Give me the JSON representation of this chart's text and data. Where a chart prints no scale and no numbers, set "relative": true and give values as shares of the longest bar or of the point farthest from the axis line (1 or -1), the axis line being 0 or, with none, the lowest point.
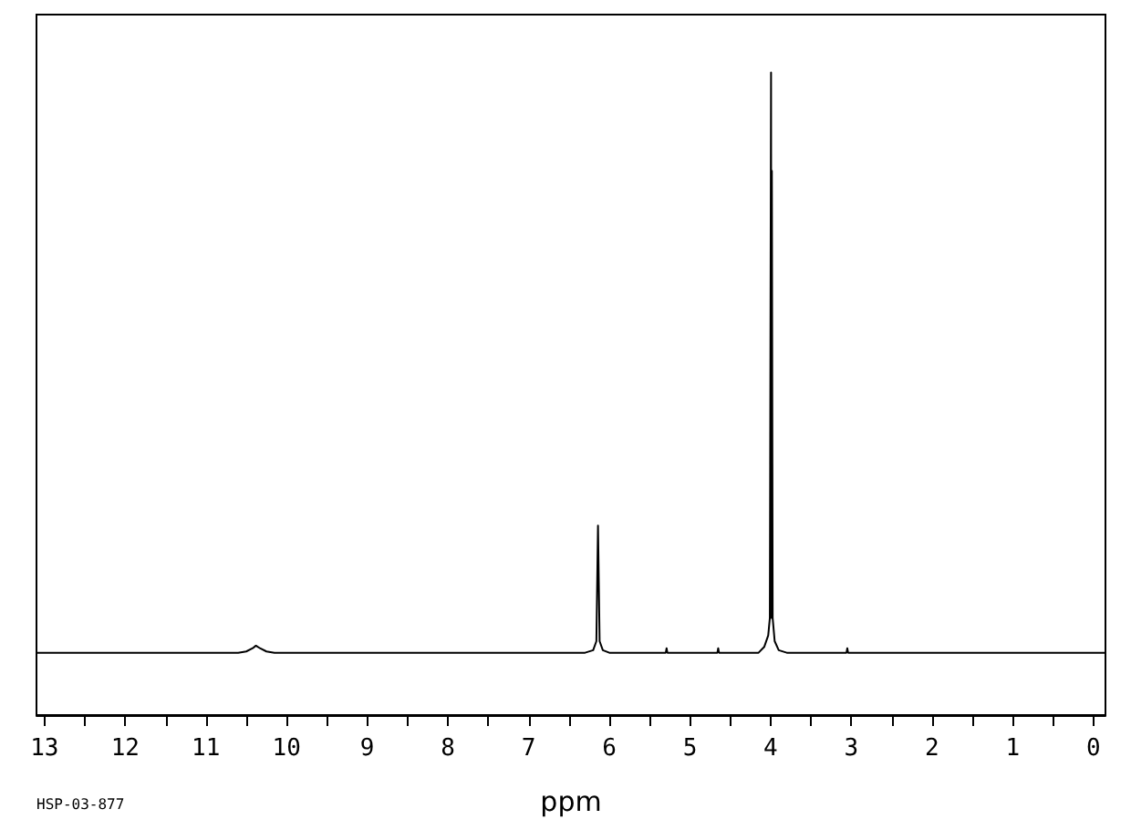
{
  "chart_data": {
    "type": "line",
    "relative": true,
    "xlabel": "ppm",
    "annotations": [
      "HSP-03-877"
    ],
    "xlim": [
      13.1,
      -0.15
    ],
    "xticks": [
      13,
      {
        "value": 12.5,
        "label": null
      },
      12,
      {
        "value": 11.5,
        "label": null
      },
      11,
      {
        "value": 10.5,
        "label": null
      },
      10,
      {
        "value": 9.5,
        "label": null
      },
      9,
      {
        "value": 8.5,
        "label": null
      },
      8,
      {
        "value": 7.5,
        "label": null
      },
      7,
      {
        "value": 6.5,
        "label": null
      },
      6,
      {
        "value": 5.5,
        "label": null
      },
      5,
      {
        "value": 4.5,
        "label": null
      },
      4,
      {
        "value": 3.5,
        "label": null
      },
      3,
      {
        "value": 2.5,
        "label": null
      },
      2,
      {
        "value": 1.5,
        "label": null
      },
      1,
      {
        "value": 0.5,
        "label": null
      },
      0
    ],
    "grid": false,
    "marker": "none",
    "line_style": "solid",
    "series": [
      {
        "color": "#000000",
        "x": [
          13.1,
          10.6,
          10.5,
          10.42,
          10.38,
          10.33,
          10.25,
          10.15,
          6.3,
          6.2,
          6.16,
          6.14,
          6.12,
          6.08,
          6.0,
          5.3,
          5.29,
          5.28,
          4.66,
          4.65,
          4.64,
          4.15,
          4.08,
          4.03,
          4.01,
          3.995,
          3.99,
          3.985,
          3.975,
          3.95,
          3.9,
          3.8,
          3.06,
          3.05,
          3.04,
          -0.15
        ],
        "values": [
          0.097,
          0.097,
          0.099,
          0.104,
          0.108,
          0.104,
          0.099,
          0.097,
          0.097,
          0.101,
          0.115,
          0.295,
          0.115,
          0.101,
          0.097,
          0.097,
          0.104,
          0.097,
          0.097,
          0.104,
          0.097,
          0.097,
          0.106,
          0.124,
          0.151,
          1,
          0.151,
          0.847,
          0.151,
          0.115,
          0.101,
          0.097,
          0.097,
          0.104,
          0.097,
          0.097
        ]
      }
    ]
  }
}
